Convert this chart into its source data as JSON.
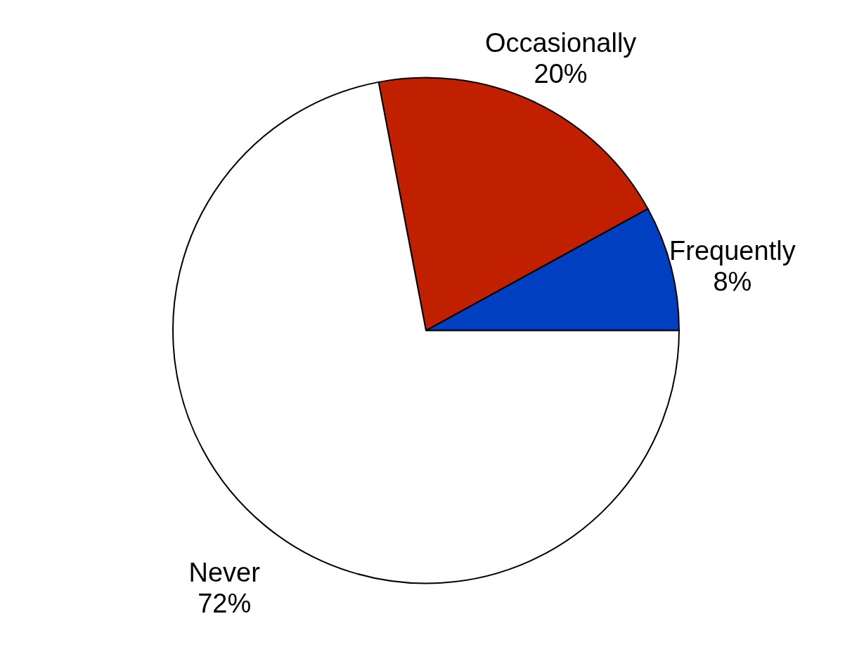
{
  "chart_data": {
    "type": "pie",
    "categories": [
      "Frequently",
      "Occasionally",
      "Never"
    ],
    "values": [
      8,
      20,
      72
    ],
    "colors": [
      "#0040c0",
      "#c02000",
      "#ffffff"
    ],
    "value_labels": [
      "8%",
      "20%",
      "72%"
    ]
  }
}
